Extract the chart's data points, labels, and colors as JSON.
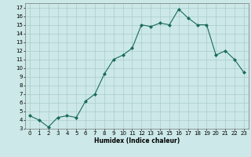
{
  "x": [
    0,
    1,
    2,
    3,
    4,
    5,
    6,
    7,
    8,
    9,
    10,
    11,
    12,
    13,
    14,
    15,
    16,
    17,
    18,
    19,
    20,
    21,
    22,
    23
  ],
  "y": [
    4.5,
    4.0,
    3.2,
    4.3,
    4.5,
    4.3,
    6.2,
    7.0,
    9.3,
    11.0,
    11.5,
    12.3,
    15.0,
    14.8,
    15.2,
    15.0,
    16.8,
    15.8,
    15.0,
    15.0,
    11.5,
    12.0,
    11.0,
    9.5
  ],
  "xlim": [
    -0.5,
    23.5
  ],
  "ylim": [
    3,
    17.5
  ],
  "yticks": [
    3,
    4,
    5,
    6,
    7,
    8,
    9,
    10,
    11,
    12,
    13,
    14,
    15,
    16,
    17
  ],
  "xticks": [
    0,
    1,
    2,
    3,
    4,
    5,
    6,
    7,
    8,
    9,
    10,
    11,
    12,
    13,
    14,
    15,
    16,
    17,
    18,
    19,
    20,
    21,
    22,
    23
  ],
  "xlabel": "Humidex (Indice chaleur)",
  "line_color": "#1a6b5a",
  "marker": "D",
  "marker_size": 2.0,
  "bg_color": "#cce8e8",
  "grid_color": "#aacccc",
  "tick_fontsize": 5.0,
  "xlabel_fontsize": 5.5,
  "linewidth": 0.8
}
